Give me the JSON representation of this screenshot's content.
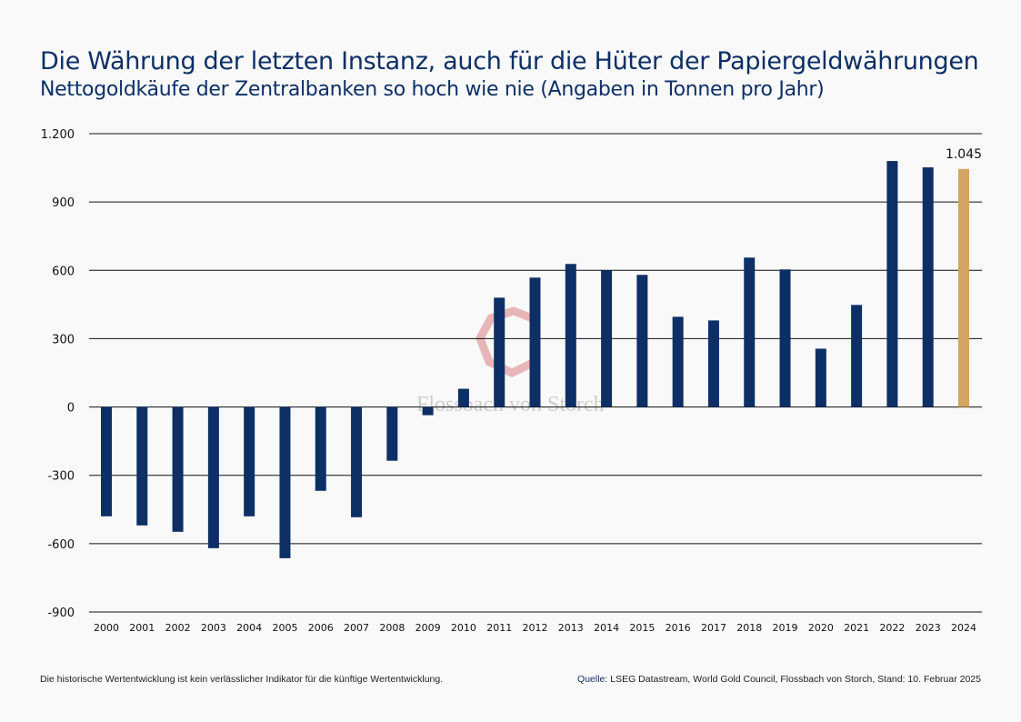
{
  "header": {
    "title": "Die Währung der letzten Instanz, auch für die Hüter der Papiergeldwährungen",
    "subtitle": "Nettogoldkäufe der Zentralbanken so hoch wie nie (Angaben in Tonnen pro Jahr)"
  },
  "footer": {
    "disclaimer": "Die historische Wertentwicklung ist kein verlässlicher Indikator für die künftige Wertentwicklung.",
    "source_label": "Quelle:",
    "source": " LSEG Datastream, World Gold Council, Flossbach von Storch, Stand: 10. Februar 2025"
  },
  "watermark": "Flossbach von Storch",
  "colors": {
    "bar": "#0d2f66",
    "highlight": "#d4a462",
    "watermark": "#e3a5a8"
  },
  "chart_data": {
    "type": "bar",
    "categories": [
      "2000",
      "2001",
      "2002",
      "2003",
      "2004",
      "2005",
      "2006",
      "2007",
      "2008",
      "2009",
      "2010",
      "2011",
      "2012",
      "2013",
      "2014",
      "2015",
      "2016",
      "2017",
      "2018",
      "2019",
      "2020",
      "2021",
      "2022",
      "2023",
      "2024"
    ],
    "values": [
      -480,
      -520,
      -548,
      -620,
      -480,
      -664,
      -368,
      -484,
      -236,
      -36,
      80,
      480,
      568,
      628,
      600,
      580,
      396,
      380,
      656,
      604,
      256,
      448,
      1080,
      1052,
      1045
    ],
    "highlight_index": 24,
    "data_labels": [
      {
        "category": "2024",
        "text": "1.045"
      }
    ],
    "ylim": [
      -900,
      1200
    ],
    "yticks": [
      {
        "v": 1200,
        "t": "1.200"
      },
      {
        "v": 900,
        "t": "900"
      },
      {
        "v": 600,
        "t": "600"
      },
      {
        "v": 300,
        "t": "300"
      },
      {
        "v": 0,
        "t": "0"
      },
      {
        "v": -300,
        "t": "-300"
      },
      {
        "v": -600,
        "t": "-600"
      },
      {
        "v": -900,
        "t": "-900"
      }
    ],
    "grid": true
  }
}
